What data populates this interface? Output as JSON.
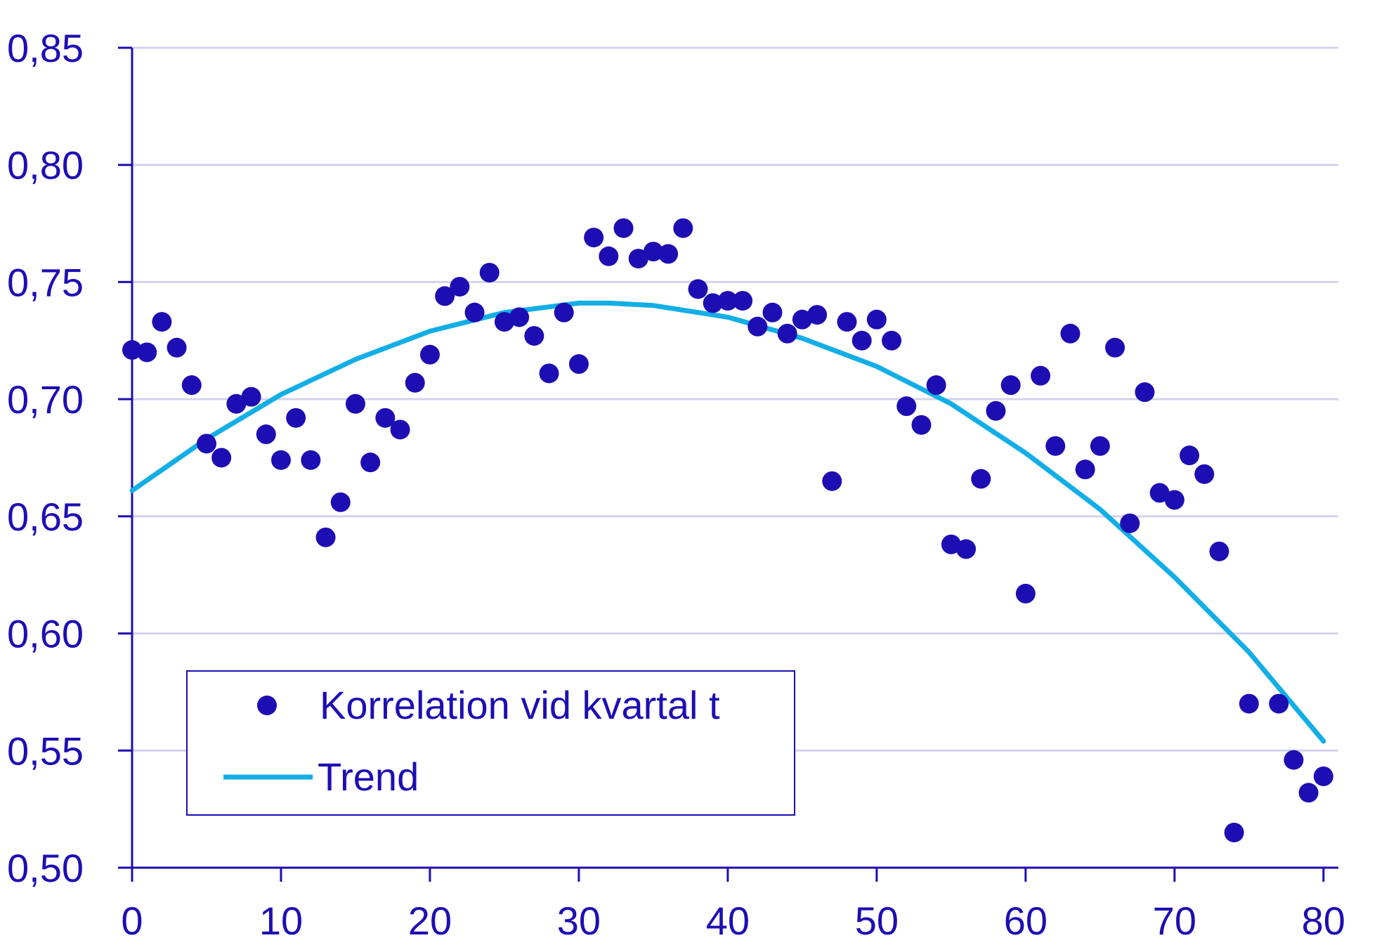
{
  "colors": {
    "axis": "#1d0eb3",
    "grid": "#d4d2ee",
    "points": "#1d0eb3",
    "trend": "#13aee6",
    "text": "#1d0eb3"
  },
  "legend": {
    "points_label": "Korrelation vid kvartal t",
    "trend_label": "Trend"
  },
  "chart_data": {
    "type": "scatter",
    "title": "",
    "xlabel": "",
    "ylabel": "",
    "xlim": [
      0,
      81
    ],
    "ylim": [
      0.5,
      0.85
    ],
    "grid": true,
    "legend_position": "bottom-left",
    "x_ticks": [
      {
        "value": 0,
        "label": "0"
      },
      {
        "value": 10,
        "label": "10"
      },
      {
        "value": 20,
        "label": "20"
      },
      {
        "value": 30,
        "label": "30"
      },
      {
        "value": 40,
        "label": "40"
      },
      {
        "value": 50,
        "label": "50"
      },
      {
        "value": 60,
        "label": "60"
      },
      {
        "value": 70,
        "label": "70"
      },
      {
        "value": 80,
        "label": "80"
      }
    ],
    "y_ticks": [
      {
        "value": 0.5,
        "label": "0,50"
      },
      {
        "value": 0.55,
        "label": "0,55"
      },
      {
        "value": 0.6,
        "label": "0,60"
      },
      {
        "value": 0.65,
        "label": "0,65"
      },
      {
        "value": 0.7,
        "label": "0,70"
      },
      {
        "value": 0.75,
        "label": "0,75"
      },
      {
        "value": 0.8,
        "label": "0,80"
      },
      {
        "value": 0.85,
        "label": "0,85"
      }
    ],
    "series": [
      {
        "name": "Korrelation vid kvartal t",
        "type": "scatter",
        "x": [
          0,
          1,
          2,
          3,
          4,
          5,
          6,
          7,
          8,
          9,
          10,
          11,
          12,
          13,
          14,
          15,
          16,
          17,
          18,
          19,
          20,
          21,
          22,
          23,
          24,
          25,
          26,
          27,
          28,
          29,
          30,
          31,
          32,
          33,
          34,
          35,
          36,
          37,
          38,
          39,
          40,
          41,
          42,
          43,
          44,
          45,
          46,
          47,
          48,
          49,
          50,
          51,
          52,
          53,
          54,
          55,
          56,
          57,
          58,
          59,
          60,
          61,
          62,
          63,
          64,
          65,
          66,
          67,
          68,
          69,
          70,
          71,
          72,
          73,
          74,
          75,
          77,
          78,
          79,
          80
        ],
        "y": [
          0.721,
          0.72,
          0.733,
          0.722,
          0.706,
          0.681,
          0.675,
          0.698,
          0.701,
          0.685,
          0.674,
          0.692,
          0.674,
          0.641,
          0.656,
          0.698,
          0.673,
          0.692,
          0.687,
          0.707,
          0.719,
          0.744,
          0.748,
          0.737,
          0.754,
          0.733,
          0.735,
          0.727,
          0.711,
          0.737,
          0.715,
          0.769,
          0.761,
          0.773,
          0.76,
          0.763,
          0.762,
          0.773,
          0.747,
          0.741,
          0.742,
          0.742,
          0.731,
          0.737,
          0.728,
          0.734,
          0.736,
          0.665,
          0.733,
          0.725,
          0.734,
          0.725,
          0.697,
          0.689,
          0.706,
          0.638,
          0.636,
          0.666,
          0.695,
          0.706,
          0.617,
          0.71,
          0.68,
          0.728,
          0.67,
          0.68,
          0.722,
          0.647,
          0.703,
          0.66,
          0.657,
          0.676,
          0.668,
          0.635,
          0.515,
          0.57,
          0.57,
          0.546,
          0.532,
          0.539
        ]
      },
      {
        "name": "Trend",
        "type": "line",
        "x": [
          0,
          5,
          10,
          15,
          20,
          25,
          30,
          32,
          35,
          40,
          45,
          50,
          55,
          60,
          65,
          70,
          75,
          80
        ],
        "y": [
          0.661,
          0.683,
          0.702,
          0.717,
          0.729,
          0.737,
          0.741,
          0.741,
          0.74,
          0.735,
          0.726,
          0.714,
          0.698,
          0.677,
          0.653,
          0.624,
          0.592,
          0.554
        ]
      }
    ]
  }
}
